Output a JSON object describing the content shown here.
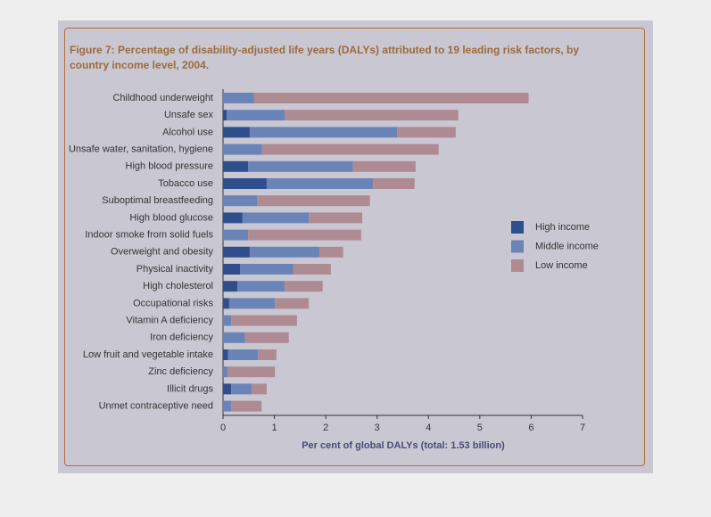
{
  "chart_data": {
    "type": "bar",
    "orientation": "horizontal",
    "stacked": true,
    "title": "Figure 7: Percentage of disability-adjusted life years (DALYs) attributed to 19 leading risk factors, by country income level, 2004.",
    "x_label": "Per cent of global DALYs (total: 1.53 billion)",
    "categories": [
      "Childhood underweight",
      "Unsafe sex",
      "Alcohol use",
      "Unsafe water, sanitation, hygiene",
      "High blood pressure",
      "Tobacco use",
      "Suboptimal breastfeeding",
      "High blood glucose",
      "Indoor smoke from solid fuels",
      "Overweight and obesity",
      "Physical inactivity",
      "High cholesterol",
      "Occupational risks",
      "Vitamin A deficiency",
      "Iron deficiency",
      "Low fruit and vegetable intake",
      "Zinc deficiency",
      "Illicit drugs",
      "Unmet contraceptive need"
    ],
    "series": [
      {
        "name": "High income",
        "color": "#2e4f8c",
        "values": [
          0,
          0.07,
          0.52,
          0,
          0.49,
          0.85,
          0,
          0.38,
          0,
          0.52,
          0.33,
          0.28,
          0.12,
          0,
          0,
          0.1,
          0,
          0.16,
          0
        ]
      },
      {
        "name": "Middle income",
        "color": "#6a84b8",
        "values": [
          0.6,
          1.13,
          2.87,
          0.76,
          2.04,
          2.07,
          0.66,
          1.29,
          0.49,
          1.36,
          1.04,
          0.92,
          0.89,
          0.16,
          0.43,
          0.58,
          0.09,
          0.4,
          0.16
        ]
      },
      {
        "name": "Low income",
        "color": "#ae8a92",
        "values": [
          5.35,
          3.38,
          1.14,
          3.44,
          1.22,
          0.81,
          2.2,
          1.04,
          2.2,
          0.46,
          0.73,
          0.74,
          0.66,
          1.28,
          0.85,
          0.36,
          0.92,
          0.29,
          0.59
        ]
      }
    ],
    "xlim": [
      0,
      7
    ],
    "xticks": [
      0,
      1,
      2,
      3,
      4,
      5,
      6,
      7
    ]
  }
}
